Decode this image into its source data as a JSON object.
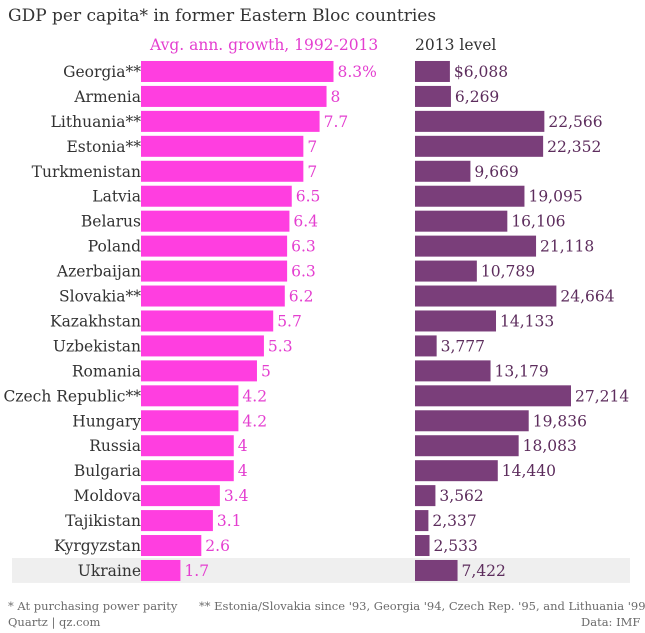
{
  "title": "GDP per capita* in former Eastern Bloc countries",
  "colors": {
    "growth_bar": "#ff3ee0",
    "growth_label": "#e43fd0",
    "gdp_bar": "#7a3e7a",
    "gdp_label": "#5d2d5d",
    "country_label": "#333333",
    "highlight_row": "#efefef"
  },
  "highlighted_category": "Ukraine",
  "footnotes": {
    "ppp": "* At purchasing power parity",
    "since": "** Estonia/Slovakia since '93, Georgia '94, Czech Rep. '95, and Lithuania '99",
    "credit": "Quartz | qz.com",
    "source": "Data: IMF"
  },
  "chart_data": [
    {
      "type": "bar",
      "orientation": "horizontal",
      "title": "Avg. ann. growth, 1992-2013",
      "categories": [
        "Georgia**",
        "Armenia",
        "Lithuania**",
        "Estonia**",
        "Turkmenistan",
        "Latvia",
        "Belarus",
        "Poland",
        "Azerbaijan",
        "Slovakia**",
        "Kazakhstan",
        "Uzbekistan",
        "Romania",
        "Czech Republic**",
        "Hungary",
        "Russia",
        "Bulgaria",
        "Moldova",
        "Tajikistan",
        "Kyrgyzstan",
        "Ukraine"
      ],
      "values": [
        8.3,
        8,
        7.7,
        7,
        7,
        6.5,
        6.4,
        6.3,
        6.3,
        6.2,
        5.7,
        5.3,
        5,
        4.2,
        4.2,
        4,
        4,
        3.4,
        3.1,
        2.6,
        1.7
      ],
      "value_labels": [
        "8.3%",
        "8",
        "7.7",
        "7",
        "7",
        "6.5",
        "6.4",
        "6.3",
        "6.3",
        "6.2",
        "5.7",
        "5.3",
        "5",
        "4.2",
        "4.2",
        "4",
        "4",
        "3.4",
        "3.1",
        "2.6",
        "1.7"
      ],
      "unit": "%",
      "xlim": [
        0,
        8.3
      ]
    },
    {
      "type": "bar",
      "orientation": "horizontal",
      "title": "2013 level",
      "categories": [
        "Georgia**",
        "Armenia",
        "Lithuania**",
        "Estonia**",
        "Turkmenistan",
        "Latvia",
        "Belarus",
        "Poland",
        "Azerbaijan",
        "Slovakia**",
        "Kazakhstan",
        "Uzbekistan",
        "Romania",
        "Czech Republic**",
        "Hungary",
        "Russia",
        "Bulgaria",
        "Moldova",
        "Tajikistan",
        "Kyrgyzstan",
        "Ukraine"
      ],
      "values": [
        6088,
        6269,
        22566,
        22352,
        9669,
        19095,
        16106,
        21118,
        10789,
        24664,
        14133,
        3777,
        13179,
        27214,
        19836,
        18083,
        14440,
        3562,
        2337,
        2533,
        7422
      ],
      "value_labels": [
        "$6,088",
        "6,269",
        "22,566",
        "22,352",
        "9,669",
        "19,095",
        "16,106",
        "21,118",
        "10,789",
        "24,664",
        "14,133",
        "3,777",
        "13,179",
        "27,214",
        "19,836",
        "18,083",
        "14,440",
        "3,562",
        "2,337",
        "2,533",
        "7,422"
      ],
      "unit": "USD",
      "xlim": [
        0,
        27214
      ]
    }
  ]
}
